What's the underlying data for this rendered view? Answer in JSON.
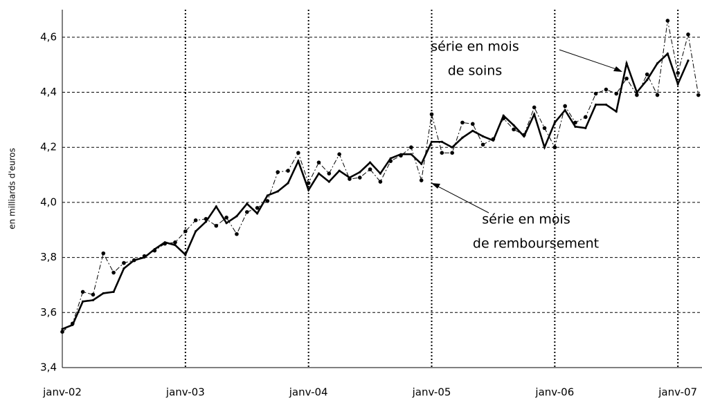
{
  "chart_data": {
    "type": "line",
    "y_label": "en milliards d'euros",
    "categories": [
      "janv-02",
      null,
      null,
      null,
      null,
      null,
      null,
      null,
      null,
      null,
      null,
      null,
      "janv-03",
      null,
      null,
      null,
      null,
      null,
      null,
      null,
      null,
      null,
      null,
      null,
      "janv-04",
      null,
      null,
      null,
      null,
      null,
      null,
      null,
      null,
      null,
      null,
      null,
      "janv-05",
      null,
      null,
      null,
      null,
      null,
      null,
      null,
      null,
      null,
      null,
      null,
      "janv-06",
      null,
      null,
      null,
      null,
      null,
      null,
      null,
      null,
      null,
      null,
      null,
      "janv-07",
      null,
      null
    ],
    "series": [
      {
        "color": "#000000",
        "values": [
          3.54,
          3.555,
          3.64,
          3.645,
          3.67,
          3.675,
          3.76,
          3.79,
          3.8,
          3.83,
          3.855,
          3.845,
          3.81,
          3.895,
          3.93,
          3.985,
          3.925,
          3.95,
          3.995,
          3.96,
          4.025,
          4.04,
          4.07,
          4.15,
          4.045,
          4.105,
          4.075,
          4.115,
          4.09,
          4.11,
          4.145,
          4.105,
          4.16,
          4.175,
          4.175,
          4.14,
          4.22,
          4.22,
          4.2,
          4.235,
          4.26,
          4.24,
          4.225,
          4.315,
          4.28,
          4.24,
          4.32,
          4.2,
          4.29,
          4.335,
          4.275,
          4.27,
          4.355,
          4.355,
          4.33,
          4.505,
          4.4,
          4.445,
          4.505,
          4.54,
          4.43,
          4.515,
          null
        ]
      },
      {
        "color": "#000000",
        "values": [
          3.53,
          3.56,
          3.675,
          3.665,
          3.815,
          3.745,
          3.78,
          3.79,
          3.805,
          3.825,
          3.85,
          3.855,
          3.895,
          3.935,
          3.94,
          3.915,
          3.945,
          3.885,
          3.965,
          3.98,
          4.005,
          4.11,
          4.115,
          4.18,
          4.07,
          4.145,
          4.105,
          4.175,
          4.085,
          4.09,
          4.12,
          4.075,
          4.15,
          4.17,
          4.2,
          4.08,
          4.32,
          4.18,
          4.18,
          4.29,
          4.285,
          4.21,
          4.23,
          4.305,
          4.265,
          4.245,
          4.345,
          4.27,
          4.2,
          4.35,
          4.29,
          4.31,
          4.395,
          4.41,
          4.395,
          4.45,
          4.39,
          4.465,
          4.39,
          4.66,
          4.47,
          4.61,
          4.39
        ]
      }
    ],
    "ylim": [
      3.4,
      4.7
    ],
    "yticks": [
      {
        "value": 3.4,
        "label": "3,4"
      },
      {
        "value": 3.6,
        "label": "3,6"
      },
      {
        "value": 3.8,
        "label": "3,8"
      },
      {
        "value": 4.0,
        "label": "4,0"
      },
      {
        "value": 4.2,
        "label": "4,2"
      },
      {
        "value": 4.4,
        "label": "4,4"
      },
      {
        "value": 4.6,
        "label": "4,6"
      }
    ],
    "grid": true,
    "annotations": [
      {
        "lines": [
          "série en mois",
          "de soins"
        ]
      },
      {
        "lines": [
          "série en mois",
          "de remboursement"
        ]
      }
    ]
  }
}
